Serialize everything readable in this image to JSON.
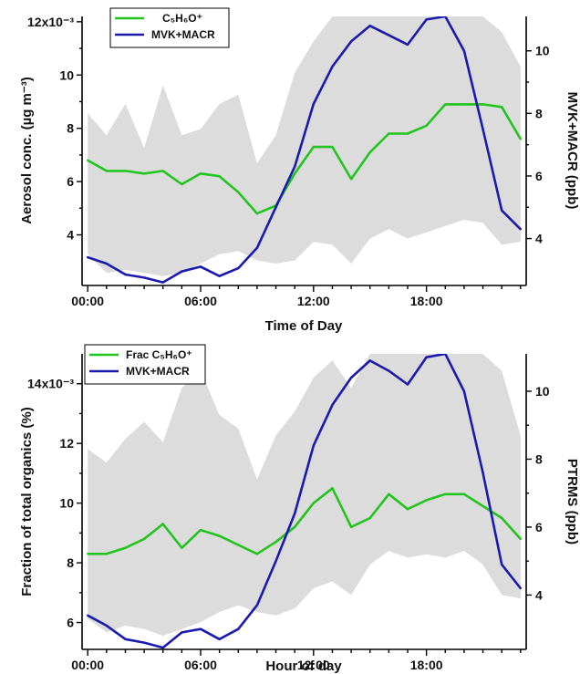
{
  "chart_data": [
    {
      "type": "line",
      "xlabel": "Time of Day",
      "ylabel_left": "Aerosol conc. (µg m⁻³)",
      "ylabel_right": "MVK+MACR (ppb)",
      "x_tick_labels": [
        "00:00",
        "06:00",
        "12:00",
        "18:00"
      ],
      "x_ticks_hours": [
        0,
        6,
        12,
        18
      ],
      "xlim": [
        -0.3,
        23.3
      ],
      "ylim_left": [
        0.0021,
        0.0122
      ],
      "ylim_right": [
        2.5,
        11.1
      ],
      "left_tick_values": [
        0.004,
        0.006,
        0.008,
        0.01,
        0.012
      ],
      "left_tick_labels": [
        "4",
        "6",
        "8",
        "10",
        "12x10⁻³"
      ],
      "right_tick_values": [
        4,
        6,
        8,
        10
      ],
      "right_tick_labels": [
        "4",
        "6",
        "8",
        "10"
      ],
      "legend_position": "top-left",
      "x": [
        0,
        1,
        2,
        3,
        4,
        5,
        6,
        7,
        8,
        9,
        10,
        11,
        12,
        13,
        14,
        15,
        16,
        17,
        18,
        19,
        20,
        21,
        22,
        23
      ],
      "series": [
        {
          "name": "C₅H₆O⁺",
          "axis": "left",
          "color": "#22c41e",
          "values": [
            0.0068,
            0.0064,
            0.0064,
            0.0063,
            0.0064,
            0.0059,
            0.0063,
            0.0062,
            0.0056,
            0.0048,
            0.0051,
            0.0063,
            0.0073,
            0.0073,
            0.0061,
            0.0071,
            0.0078,
            0.0078,
            0.0081,
            0.0089,
            0.0089,
            0.0089,
            0.0088,
            0.0076
          ]
        },
        {
          "name": "MVK+MACR",
          "axis": "right",
          "color": "#1a1aae",
          "values": [
            3.4,
            3.2,
            2.85,
            2.75,
            2.6,
            2.95,
            3.1,
            2.8,
            3.05,
            3.7,
            5.0,
            6.3,
            8.3,
            9.5,
            10.3,
            10.8,
            10.5,
            10.2,
            11.0,
            11.1,
            10.0,
            7.5,
            4.9,
            4.3
          ]
        }
      ],
      "band": {
        "axis": "right",
        "color": "#dcdcdc",
        "upper": [
          8.0,
          7.3,
          8.3,
          6.9,
          8.9,
          7.3,
          7.5,
          8.3,
          8.6,
          6.4,
          7.3,
          9.3,
          10.3,
          11.1,
          11.1,
          11.1,
          11.1,
          11.1,
          11.1,
          11.1,
          11.1,
          11.1,
          10.6,
          9.5
        ],
        "lower": [
          3.5,
          2.9,
          3.0,
          2.9,
          2.8,
          2.9,
          3.2,
          3.5,
          3.6,
          3.3,
          3.2,
          3.3,
          3.9,
          3.8,
          3.2,
          4.0,
          4.3,
          4.0,
          4.2,
          4.4,
          4.6,
          4.5,
          3.8,
          3.9
        ]
      }
    },
    {
      "type": "line",
      "xlabel": "Hour of day",
      "ylabel_left": "Fraction of total organics (%)",
      "ylabel_right": "PTRMS (ppb)",
      "x_tick_labels": [
        "00:00",
        "06:00",
        "12:00",
        "18:00"
      ],
      "x_ticks_hours": [
        0,
        6,
        12,
        18
      ],
      "xlim": [
        -0.3,
        23.3
      ],
      "ylim_left": [
        0.0051,
        0.015
      ],
      "ylim_right": [
        2.4,
        11.1
      ],
      "left_tick_values": [
        0.006,
        0.008,
        0.01,
        0.012,
        0.014
      ],
      "left_tick_labels": [
        "6",
        "8",
        "10",
        "12",
        "14x10⁻³"
      ],
      "right_tick_values": [
        4,
        6,
        8,
        10
      ],
      "right_tick_labels": [
        "4",
        "6",
        "8",
        "10"
      ],
      "legend_position": "top-left",
      "x": [
        0,
        1,
        2,
        3,
        4,
        5,
        6,
        7,
        8,
        9,
        10,
        11,
        12,
        13,
        14,
        15,
        16,
        17,
        18,
        19,
        20,
        21,
        22,
        23
      ],
      "series": [
        {
          "name": "Frac C₅H₆O⁺",
          "axis": "left",
          "color": "#22c41e",
          "values": [
            0.0083,
            0.0083,
            0.0085,
            0.0088,
            0.0093,
            0.0085,
            0.0091,
            0.0089,
            0.0086,
            0.0083,
            0.0087,
            0.0092,
            0.01,
            0.0105,
            0.0092,
            0.0095,
            0.0103,
            0.0098,
            0.0101,
            0.0103,
            0.0103,
            0.0099,
            0.0095,
            0.0088
          ]
        },
        {
          "name": "MVK+MACR",
          "axis": "right",
          "color": "#1a1aae",
          "values": [
            3.4,
            3.1,
            2.7,
            2.6,
            2.45,
            2.9,
            3.0,
            2.7,
            3.0,
            3.7,
            5.0,
            6.4,
            8.4,
            9.6,
            10.4,
            10.9,
            10.6,
            10.2,
            11.0,
            11.1,
            10.0,
            7.6,
            4.9,
            4.2
          ]
        }
      ],
      "band": {
        "axis": "right",
        "color": "#dcdcdc",
        "upper": [
          8.3,
          7.9,
          8.6,
          9.1,
          8.5,
          10.1,
          10.6,
          9.3,
          8.9,
          7.4,
          8.7,
          9.4,
          10.4,
          10.9,
          10.1,
          11.1,
          11.1,
          11.1,
          11.1,
          11.1,
          11.1,
          11.1,
          10.6,
          8.7
        ],
        "lower": [
          3.3,
          2.9,
          3.1,
          3.0,
          2.8,
          3.0,
          3.2,
          3.5,
          3.7,
          3.5,
          3.4,
          3.6,
          4.2,
          4.4,
          4.0,
          4.9,
          5.3,
          5.1,
          5.2,
          5.1,
          5.3,
          4.9,
          4.0,
          3.9
        ]
      }
    }
  ]
}
